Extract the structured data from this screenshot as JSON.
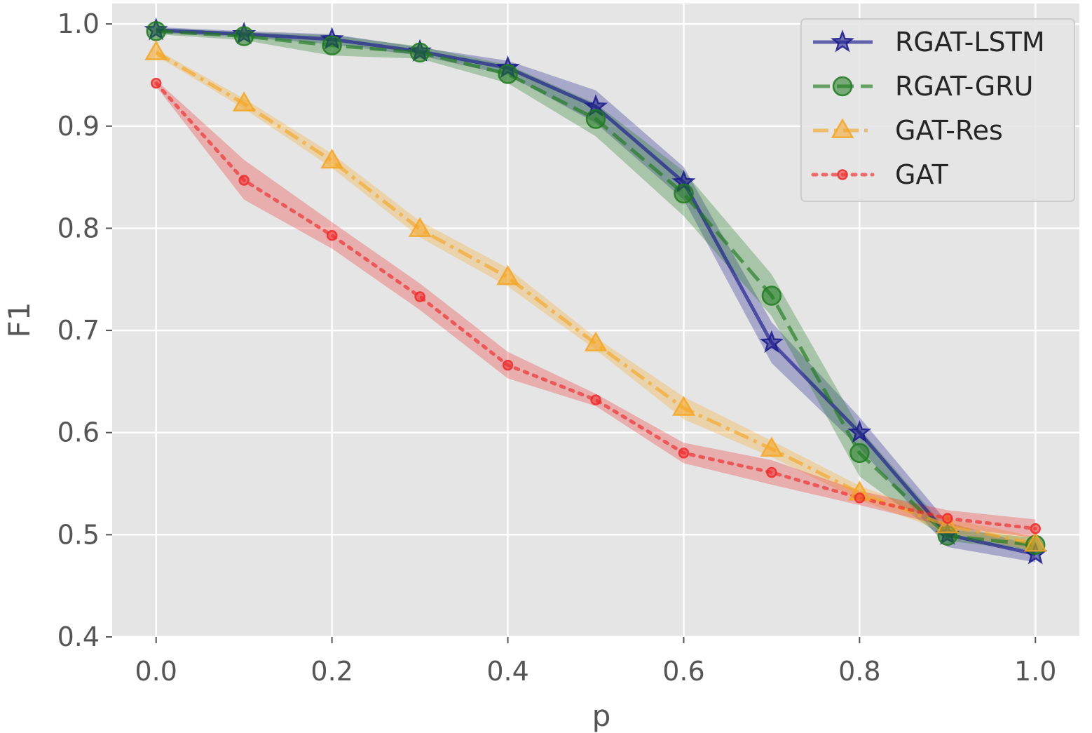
{
  "chart_data": {
    "type": "line",
    "title": "",
    "xlabel": "p",
    "ylabel": "F1",
    "xlim": [
      -0.05,
      1.05
    ],
    "ylim": [
      0.4,
      1.02
    ],
    "xticks": [
      0.0,
      0.2,
      0.4,
      0.6,
      0.8,
      1.0
    ],
    "xtick_labels": [
      "0.0",
      "0.2",
      "0.4",
      "0.6",
      "0.8",
      "1.0"
    ],
    "yticks": [
      0.4,
      0.5,
      0.6,
      0.7,
      0.8,
      0.9,
      1.0
    ],
    "ytick_labels": [
      "0.4",
      "0.5",
      "0.6",
      "0.7",
      "0.8",
      "0.9",
      "1.0"
    ],
    "grid": true,
    "legend_position": "top-right",
    "x": [
      0.0,
      0.1,
      0.2,
      0.3,
      0.4,
      0.5,
      0.6,
      0.7,
      0.8,
      0.9,
      1.0
    ],
    "series": [
      {
        "name": "RGAT-LSTM",
        "color": "#1a1a8c",
        "linestyle": "solid",
        "marker": "star",
        "values": [
          0.994,
          0.99,
          0.985,
          0.973,
          0.957,
          0.919,
          0.845,
          0.688,
          0.6,
          0.5,
          0.481
        ],
        "lower": [
          0.991,
          0.987,
          0.98,
          0.969,
          0.95,
          0.903,
          0.828,
          0.668,
          0.585,
          0.488,
          0.473
        ],
        "upper": [
          0.997,
          0.993,
          0.99,
          0.977,
          0.964,
          0.935,
          0.86,
          0.708,
          0.615,
          0.512,
          0.489
        ]
      },
      {
        "name": "RGAT-GRU",
        "color": "#1e7a1e",
        "linestyle": "dashed",
        "marker": "circle",
        "values": [
          0.993,
          0.988,
          0.979,
          0.972,
          0.951,
          0.907,
          0.834,
          0.734,
          0.58,
          0.499,
          0.49
        ],
        "lower": [
          0.99,
          0.984,
          0.969,
          0.966,
          0.942,
          0.89,
          0.812,
          0.714,
          0.557,
          0.494,
          0.484
        ],
        "upper": [
          0.996,
          0.992,
          0.989,
          0.978,
          0.96,
          0.922,
          0.856,
          0.755,
          0.604,
          0.505,
          0.497
        ]
      },
      {
        "name": "GAT-Res",
        "color": "#f5a623",
        "linestyle": "dashdot",
        "marker": "triangle",
        "values": [
          0.972,
          0.922,
          0.866,
          0.799,
          0.752,
          0.687,
          0.624,
          0.584,
          0.541,
          0.509,
          0.491
        ],
        "lower": [
          0.969,
          0.917,
          0.859,
          0.791,
          0.743,
          0.681,
          0.613,
          0.576,
          0.534,
          0.502,
          0.484
        ],
        "upper": [
          0.975,
          0.927,
          0.873,
          0.807,
          0.761,
          0.693,
          0.635,
          0.592,
          0.548,
          0.516,
          0.498
        ]
      },
      {
        "name": "GAT",
        "color": "#ee2a2a",
        "linestyle": "dotted",
        "marker": "small-circle",
        "values": [
          0.942,
          0.847,
          0.793,
          0.733,
          0.666,
          0.632,
          0.58,
          0.561,
          0.536,
          0.516,
          0.506
        ],
        "lower": [
          0.939,
          0.828,
          0.78,
          0.72,
          0.653,
          0.626,
          0.57,
          0.549,
          0.529,
          0.508,
          0.497
        ],
        "upper": [
          0.945,
          0.867,
          0.806,
          0.746,
          0.679,
          0.638,
          0.59,
          0.573,
          0.543,
          0.524,
          0.515
        ]
      }
    ]
  }
}
